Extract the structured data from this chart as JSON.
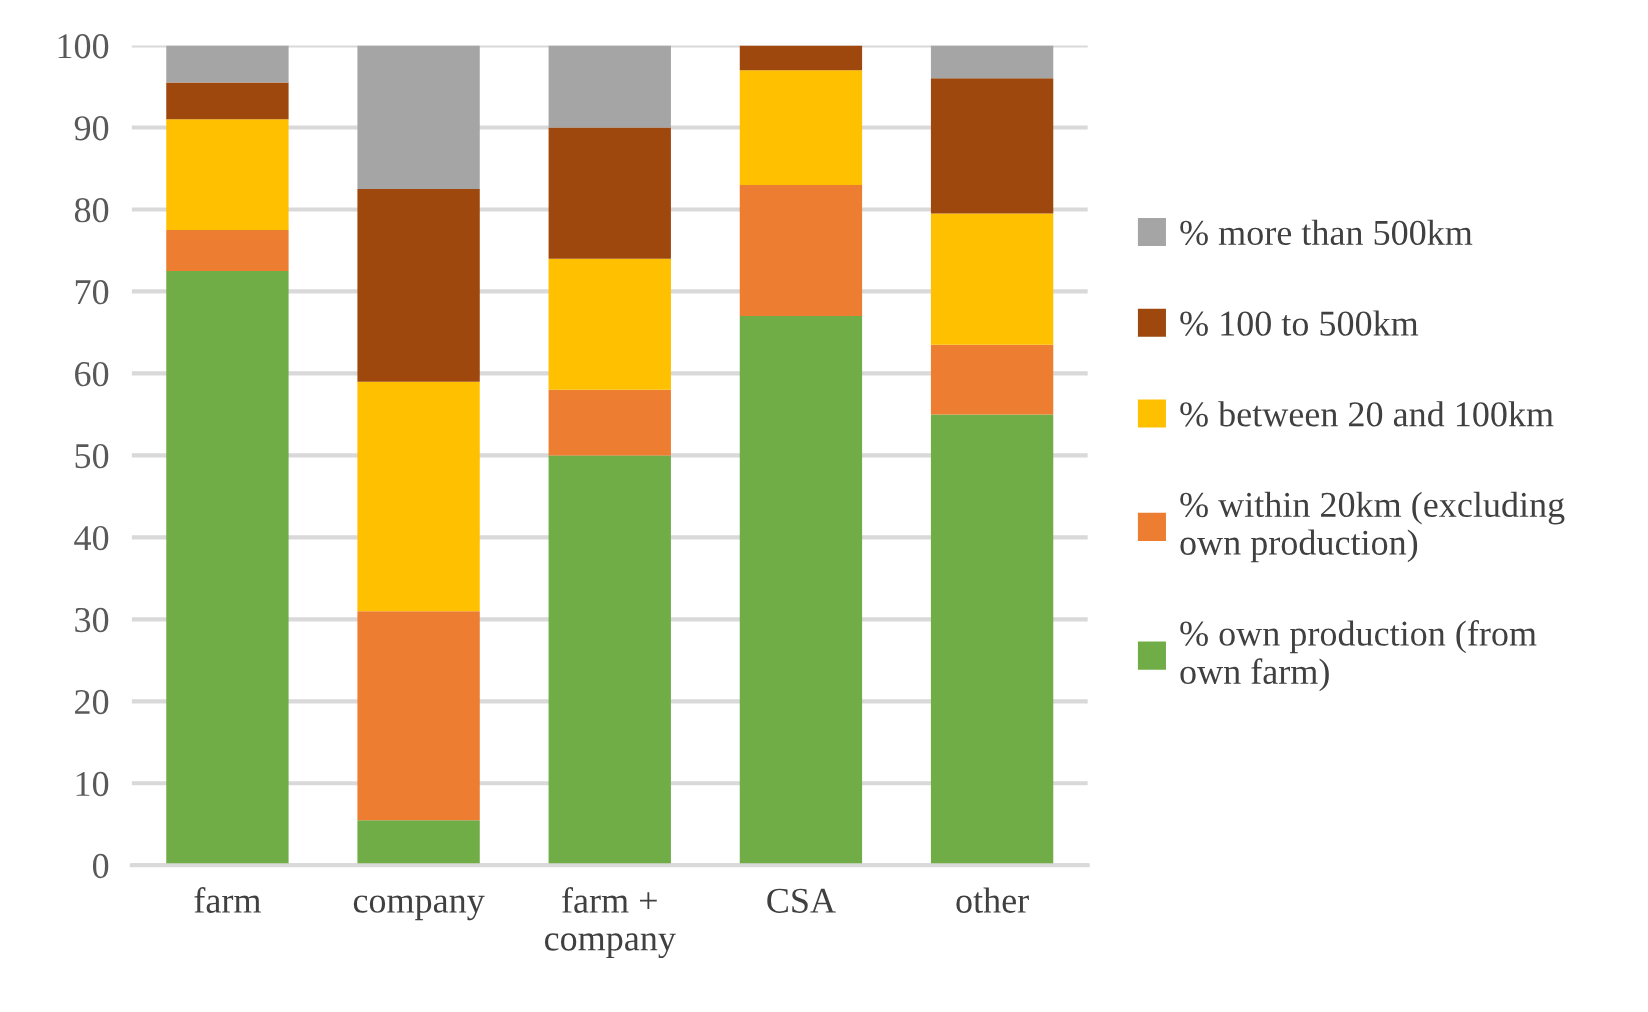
{
  "chart_data": {
    "type": "bar",
    "stacked": true,
    "categories": [
      "farm",
      "company",
      "farm + company",
      "CSA",
      "other"
    ],
    "series": [
      {
        "name": "% own production (from own farm)",
        "color": "#70ad47",
        "values": [
          72.5,
          5.5,
          50,
          67,
          55
        ]
      },
      {
        "name": "% within 20km (excluding own production)",
        "color": "#ed7d31",
        "values": [
          5,
          25.5,
          8,
          16,
          8.5
        ]
      },
      {
        "name": "% between 20 and 100km",
        "color": "#ffc000",
        "values": [
          13.5,
          28,
          16,
          14,
          16
        ]
      },
      {
        "name": "% 100 to 500km",
        "color": "#9e480e",
        "values": [
          4.5,
          23.5,
          16,
          3,
          16.5
        ]
      },
      {
        "name": "% more than 500km",
        "color": "#a5a5a5",
        "values": [
          4.5,
          17.5,
          10,
          0,
          4
        ]
      }
    ],
    "ylim": [
      0,
      100
    ],
    "yticks": [
      0,
      10,
      20,
      30,
      40,
      50,
      60,
      70,
      80,
      90,
      100
    ],
    "grid": "y",
    "legend": "right"
  }
}
